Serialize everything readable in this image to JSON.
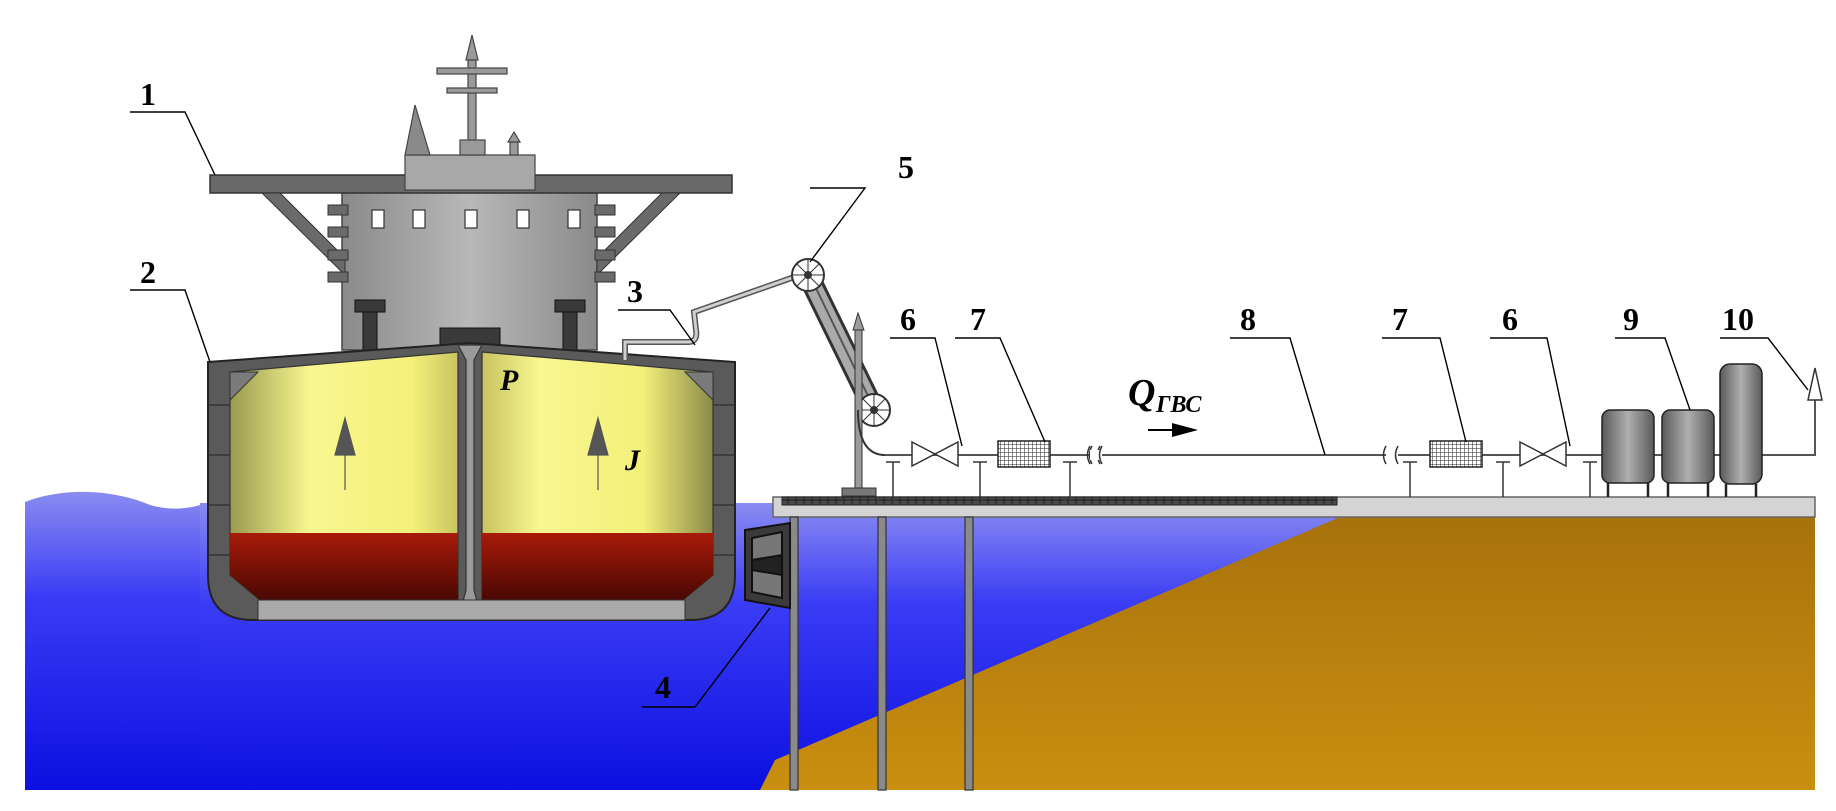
{
  "callouts": {
    "c1": "1",
    "c2": "2",
    "c3": "3",
    "c4": "4",
    "c5": "5",
    "c6a": "6",
    "c7a": "7",
    "c8": "8",
    "c7b": "7",
    "c6b": "6",
    "c9": "9",
    "c10": "10"
  },
  "symbols": {
    "p": "P",
    "j": "J",
    "q_main": "Q",
    "q_sub": "ГВС"
  },
  "colors": {
    "water": "#2a2af5",
    "seabed": "#c28a10",
    "superstructure": "#a0a0a0",
    "hull": "#5a5a5a",
    "tank_vapor": "#f5f48a",
    "tank_liquid": "#8a1408",
    "pier": "#cfcfcf",
    "pipeline": "#555555"
  }
}
